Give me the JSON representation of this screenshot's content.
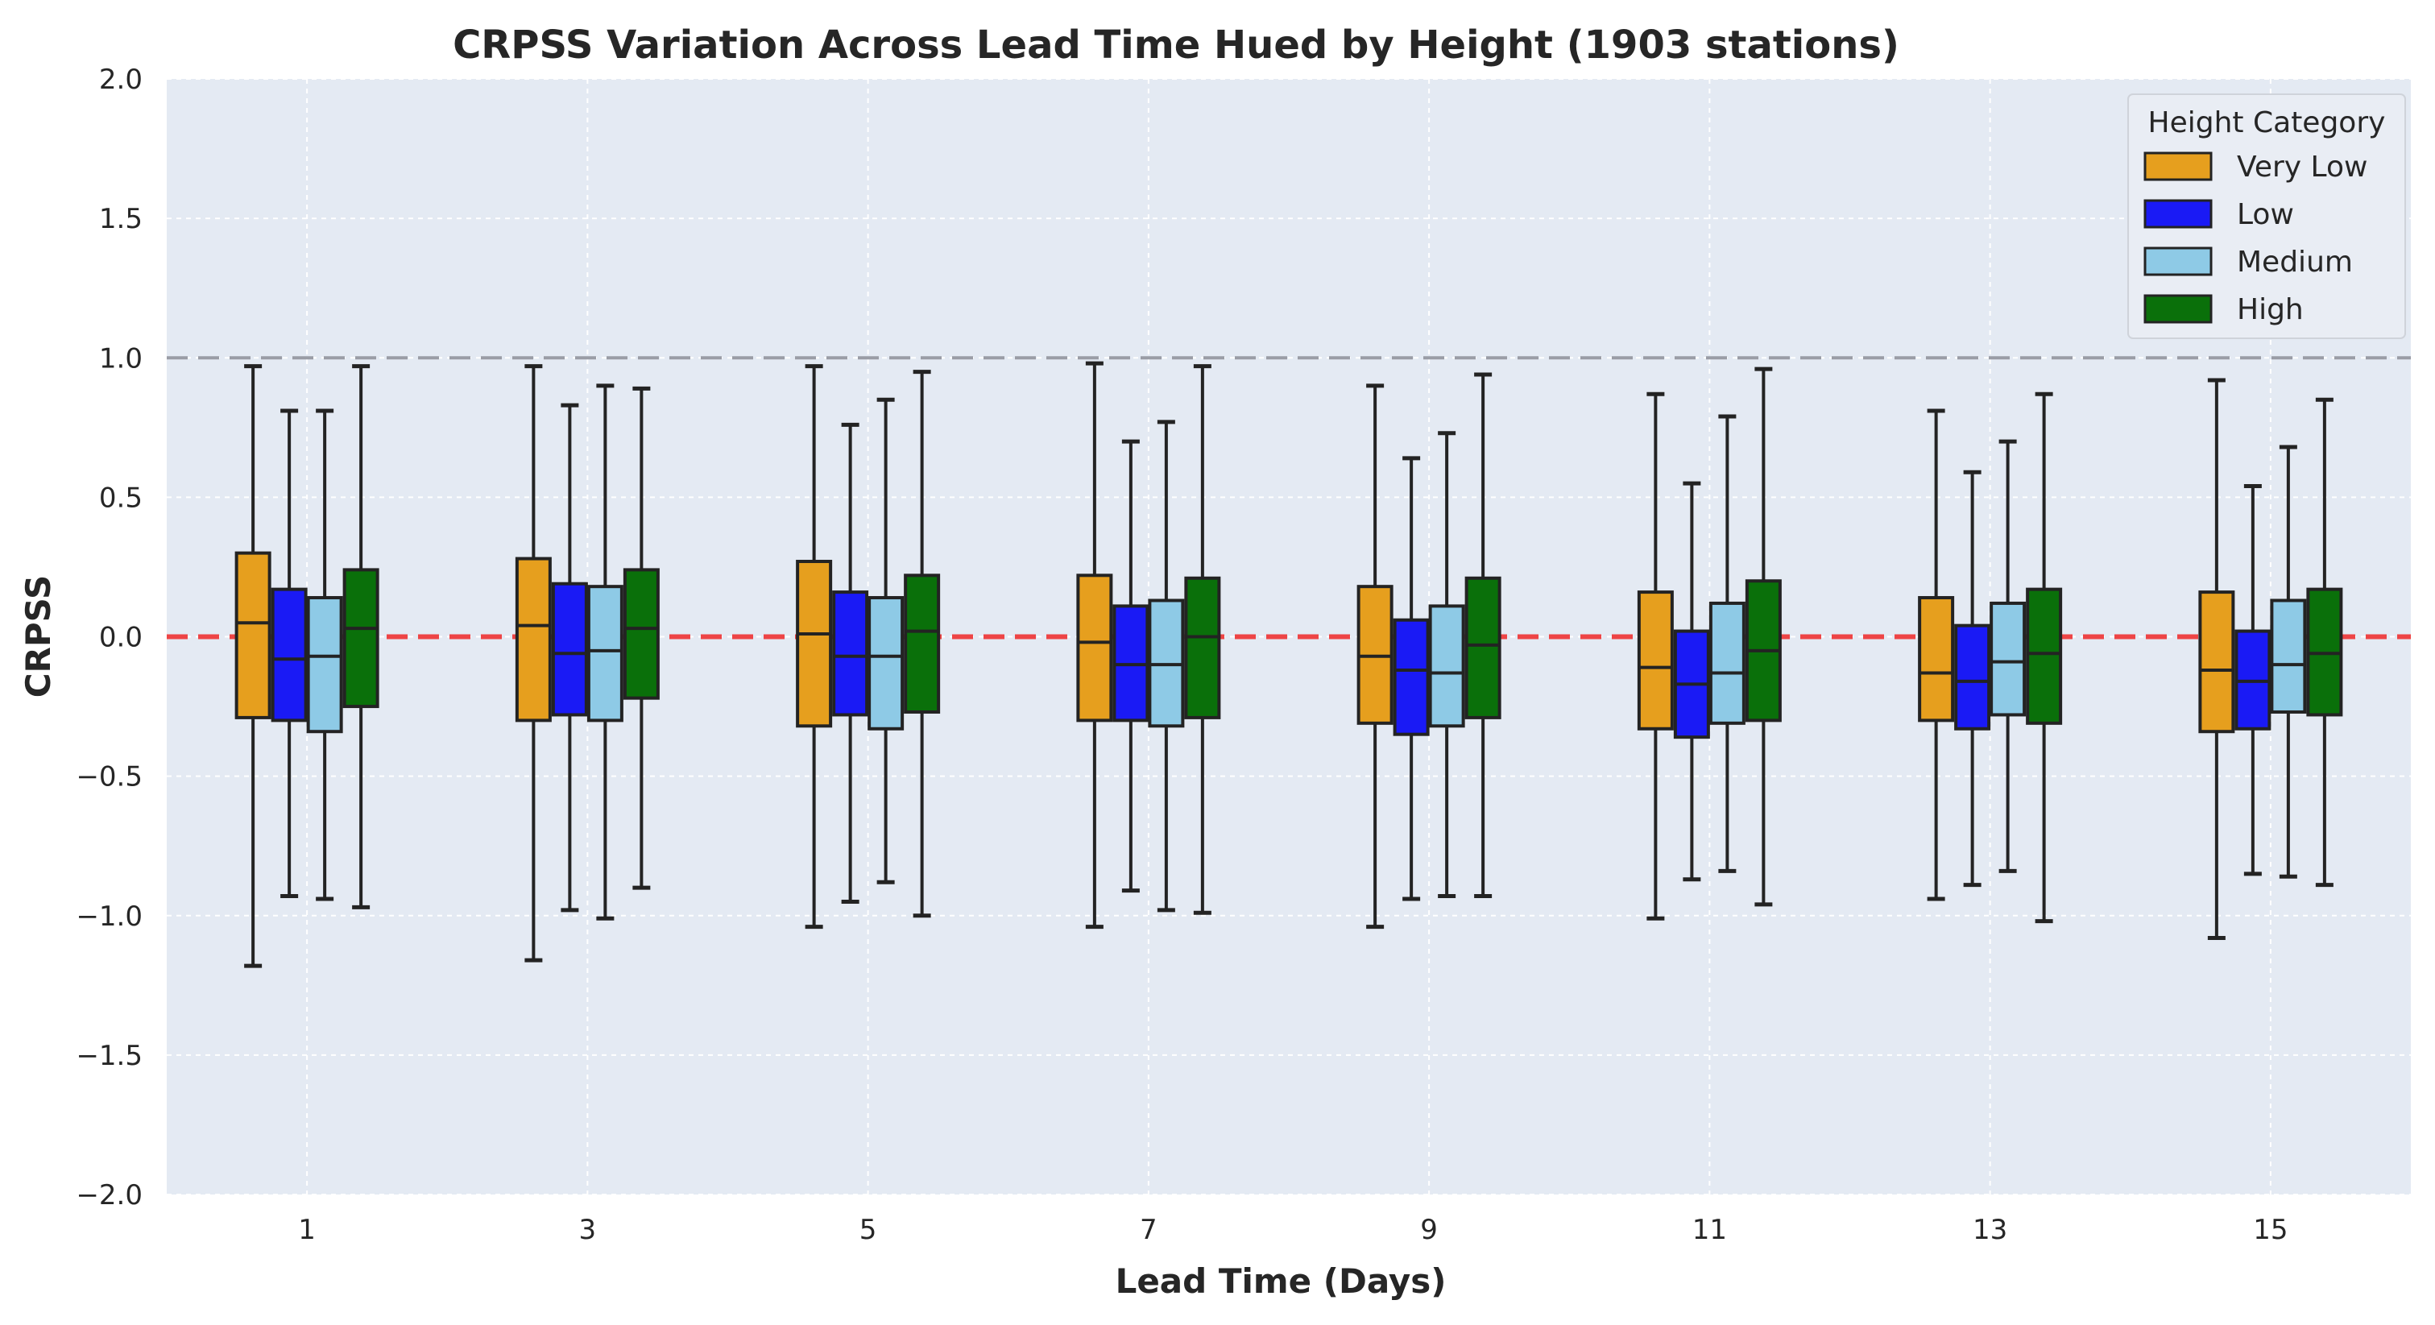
{
  "chart_data": {
    "type": "box",
    "title": "CRPSS Variation Across Lead Time Hued by Height (1903 stations)",
    "xlabel": "Lead Time (Days)",
    "ylabel": "CRPSS",
    "ylim": [
      -2.0,
      2.0
    ],
    "yticks": [
      "2.0",
      "1.5",
      "1.0",
      "0.5",
      "0.0",
      "−0.5",
      "−1.0",
      "−1.5",
      "−2.0"
    ],
    "ytick_values": [
      2.0,
      1.5,
      1.0,
      0.5,
      0.0,
      -0.5,
      -1.0,
      -1.5,
      -2.0
    ],
    "categories": [
      "1",
      "3",
      "5",
      "7",
      "9",
      "11",
      "13",
      "15"
    ],
    "grid": true,
    "reference_lines": [
      {
        "y": 1.0,
        "color": "#9a9da6",
        "style": "dashed"
      },
      {
        "y": 0.0,
        "color": "#ee3b3b",
        "style": "dashed"
      }
    ],
    "legend": {
      "title": "Height Category",
      "position": "top-right"
    },
    "series": [
      {
        "name": "Very Low",
        "color": "#e69f1e",
        "boxes": [
          {
            "min": -1.18,
            "q1": -0.29,
            "median": 0.05,
            "q3": 0.3,
            "max": 0.97
          },
          {
            "min": -1.16,
            "q1": -0.3,
            "median": 0.04,
            "q3": 0.28,
            "max": 0.97
          },
          {
            "min": -1.04,
            "q1": -0.32,
            "median": 0.01,
            "q3": 0.27,
            "max": 0.97
          },
          {
            "min": -1.04,
            "q1": -0.3,
            "median": -0.02,
            "q3": 0.22,
            "max": 0.98
          },
          {
            "min": -1.04,
            "q1": -0.31,
            "median": -0.07,
            "q3": 0.18,
            "max": 0.9
          },
          {
            "min": -1.01,
            "q1": -0.33,
            "median": -0.11,
            "q3": 0.16,
            "max": 0.87
          },
          {
            "min": -0.94,
            "q1": -0.3,
            "median": -0.13,
            "q3": 0.14,
            "max": 0.81
          },
          {
            "min": -1.08,
            "q1": -0.34,
            "median": -0.12,
            "q3": 0.16,
            "max": 0.92
          }
        ]
      },
      {
        "name": "Low",
        "color": "#1a1af5",
        "boxes": [
          {
            "min": -0.93,
            "q1": -0.3,
            "median": -0.08,
            "q3": 0.17,
            "max": 0.81
          },
          {
            "min": -0.98,
            "q1": -0.28,
            "median": -0.06,
            "q3": 0.19,
            "max": 0.83
          },
          {
            "min": -0.95,
            "q1": -0.28,
            "median": -0.07,
            "q3": 0.16,
            "max": 0.76
          },
          {
            "min": -0.91,
            "q1": -0.3,
            "median": -0.1,
            "q3": 0.11,
            "max": 0.7
          },
          {
            "min": -0.94,
            "q1": -0.35,
            "median": -0.12,
            "q3": 0.06,
            "max": 0.64
          },
          {
            "min": -0.87,
            "q1": -0.36,
            "median": -0.17,
            "q3": 0.02,
            "max": 0.55
          },
          {
            "min": -0.89,
            "q1": -0.33,
            "median": -0.16,
            "q3": 0.04,
            "max": 0.59
          },
          {
            "min": -0.85,
            "q1": -0.33,
            "median": -0.16,
            "q3": 0.02,
            "max": 0.54
          }
        ]
      },
      {
        "name": "Medium",
        "color": "#8ecae6",
        "boxes": [
          {
            "min": -0.94,
            "q1": -0.34,
            "median": -0.07,
            "q3": 0.14,
            "max": 0.81
          },
          {
            "min": -1.01,
            "q1": -0.3,
            "median": -0.05,
            "q3": 0.18,
            "max": 0.9
          },
          {
            "min": -0.88,
            "q1": -0.33,
            "median": -0.07,
            "q3": 0.14,
            "max": 0.85
          },
          {
            "min": -0.98,
            "q1": -0.32,
            "median": -0.1,
            "q3": 0.13,
            "max": 0.77
          },
          {
            "min": -0.93,
            "q1": -0.32,
            "median": -0.13,
            "q3": 0.11,
            "max": 0.73
          },
          {
            "min": -0.84,
            "q1": -0.31,
            "median": -0.13,
            "q3": 0.12,
            "max": 0.79
          },
          {
            "min": -0.84,
            "q1": -0.28,
            "median": -0.09,
            "q3": 0.12,
            "max": 0.7
          },
          {
            "min": -0.86,
            "q1": -0.27,
            "median": -0.1,
            "q3": 0.13,
            "max": 0.68
          }
        ]
      },
      {
        "name": "High",
        "color": "#0a700a",
        "boxes": [
          {
            "min": -0.97,
            "q1": -0.25,
            "median": 0.03,
            "q3": 0.24,
            "max": 0.97
          },
          {
            "min": -0.9,
            "q1": -0.22,
            "median": 0.03,
            "q3": 0.24,
            "max": 0.89
          },
          {
            "min": -1.0,
            "q1": -0.27,
            "median": 0.02,
            "q3": 0.22,
            "max": 0.95
          },
          {
            "min": -0.99,
            "q1": -0.29,
            "median": 0.0,
            "q3": 0.21,
            "max": 0.97
          },
          {
            "min": -0.93,
            "q1": -0.29,
            "median": -0.03,
            "q3": 0.21,
            "max": 0.94
          },
          {
            "min": -0.96,
            "q1": -0.3,
            "median": -0.05,
            "q3": 0.2,
            "max": 0.96
          },
          {
            "min": -1.02,
            "q1": -0.31,
            "median": -0.06,
            "q3": 0.17,
            "max": 0.87
          },
          {
            "min": -0.89,
            "q1": -0.28,
            "median": -0.06,
            "q3": 0.17,
            "max": 0.85
          }
        ]
      }
    ]
  }
}
